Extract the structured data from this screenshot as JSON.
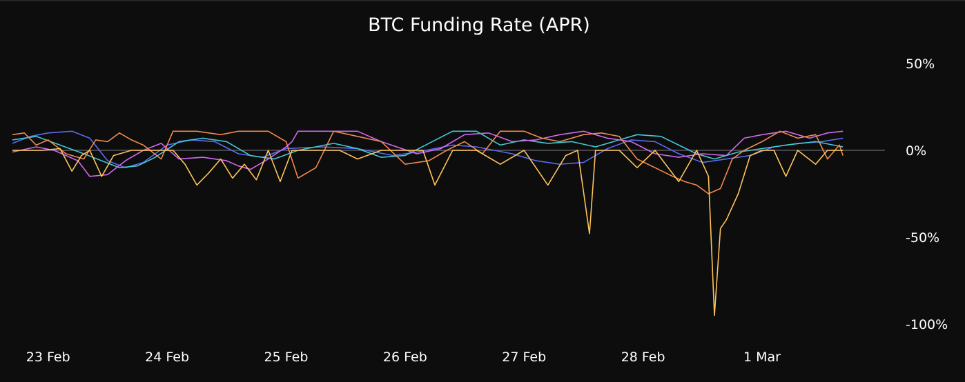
{
  "chart_data": {
    "type": "line",
    "title": "BTC Funding Rate (APR)",
    "xlabel": "",
    "ylabel": "",
    "ylim": [
      -100,
      50
    ],
    "yticks": [
      {
        "value": 50,
        "label": "50%"
      },
      {
        "value": 0,
        "label": "0%"
      },
      {
        "value": -50,
        "label": "-50%"
      },
      {
        "value": -100,
        "label": "-100%"
      }
    ],
    "xlim": [
      -0.3,
      7.05
    ],
    "xticks": [
      {
        "value": 0,
        "label": "23 Feb"
      },
      {
        "value": 1,
        "label": "24 Feb"
      },
      {
        "value": 2,
        "label": "25 Feb"
      },
      {
        "value": 3,
        "label": "26 Feb"
      },
      {
        "value": 4,
        "label": "27 Feb"
      },
      {
        "value": 5,
        "label": "28 Feb"
      },
      {
        "value": 6,
        "label": "1 Mar"
      }
    ],
    "grid": false,
    "legend": "none",
    "y_axis_position": "right",
    "series": [
      {
        "color": "#5b6cf2",
        "points": [
          [
            -0.3,
            4
          ],
          [
            -0.15,
            8
          ],
          [
            0,
            10
          ],
          [
            0.2,
            11
          ],
          [
            0.35,
            7
          ],
          [
            0.5,
            -6
          ],
          [
            0.65,
            -10
          ],
          [
            0.8,
            -7
          ],
          [
            1,
            3
          ],
          [
            1.2,
            6
          ],
          [
            1.4,
            5
          ],
          [
            1.6,
            -2
          ],
          [
            1.8,
            -4
          ],
          [
            2,
            1
          ],
          [
            2.3,
            2
          ],
          [
            2.6,
            1
          ],
          [
            2.9,
            -3
          ],
          [
            3.1,
            -1
          ],
          [
            3.4,
            3
          ],
          [
            3.6,
            2
          ],
          [
            3.9,
            -2
          ],
          [
            4.1,
            -6
          ],
          [
            4.3,
            -8
          ],
          [
            4.5,
            -7
          ],
          [
            4.7,
            1
          ],
          [
            4.9,
            6
          ],
          [
            5.1,
            5
          ],
          [
            5.3,
            -2
          ],
          [
            5.5,
            -7
          ],
          [
            5.7,
            -5
          ],
          [
            5.9,
            -3
          ],
          [
            6.1,
            2
          ],
          [
            6.3,
            4
          ],
          [
            6.5,
            5
          ],
          [
            6.68,
            7
          ]
        ]
      },
      {
        "color": "#45c9d0",
        "points": [
          [
            -0.3,
            6
          ],
          [
            -0.1,
            8
          ],
          [
            0.1,
            3
          ],
          [
            0.3,
            -2
          ],
          [
            0.45,
            -6
          ],
          [
            0.6,
            -10
          ],
          [
            0.75,
            -9
          ],
          [
            0.9,
            -4
          ],
          [
            1.1,
            5
          ],
          [
            1.3,
            7
          ],
          [
            1.5,
            5
          ],
          [
            1.7,
            -3
          ],
          [
            1.9,
            -5
          ],
          [
            2.1,
            0
          ],
          [
            2.4,
            4
          ],
          [
            2.6,
            1
          ],
          [
            2.8,
            -4
          ],
          [
            3,
            -3
          ],
          [
            3.2,
            4
          ],
          [
            3.4,
            11
          ],
          [
            3.6,
            11
          ],
          [
            3.8,
            3
          ],
          [
            4,
            6
          ],
          [
            4.2,
            4
          ],
          [
            4.4,
            5
          ],
          [
            4.6,
            2
          ],
          [
            4.8,
            6
          ],
          [
            4.95,
            9
          ],
          [
            5.15,
            8
          ],
          [
            5.3,
            3
          ],
          [
            5.45,
            -2
          ],
          [
            5.6,
            -5
          ],
          [
            5.8,
            -1
          ],
          [
            6,
            1
          ],
          [
            6.2,
            3
          ],
          [
            6.45,
            5
          ],
          [
            6.68,
            2
          ]
        ]
      },
      {
        "color": "#d169f0",
        "points": [
          [
            -0.3,
            -1
          ],
          [
            -0.1,
            2
          ],
          [
            0.05,
            0
          ],
          [
            0.25,
            -6
          ],
          [
            0.35,
            -15
          ],
          [
            0.5,
            -14
          ],
          [
            0.65,
            -6
          ],
          [
            0.8,
            0
          ],
          [
            0.95,
            4
          ],
          [
            1.1,
            -5
          ],
          [
            1.3,
            -4
          ],
          [
            1.5,
            -6
          ],
          [
            1.6,
            -9
          ],
          [
            1.7,
            -11
          ],
          [
            1.85,
            -5
          ],
          [
            2.0,
            2
          ],
          [
            2.05,
            5
          ],
          [
            2.1,
            11
          ],
          [
            2.3,
            11
          ],
          [
            2.6,
            11
          ],
          [
            2.8,
            5
          ],
          [
            3.1,
            -2
          ],
          [
            3.3,
            1
          ],
          [
            3.5,
            9
          ],
          [
            3.7,
            10
          ],
          [
            3.9,
            5
          ],
          [
            4.1,
            6
          ],
          [
            4.3,
            9
          ],
          [
            4.5,
            11
          ],
          [
            4.7,
            7
          ],
          [
            4.9,
            5
          ],
          [
            5.1,
            -2
          ],
          [
            5.3,
            -4
          ],
          [
            5.5,
            -2
          ],
          [
            5.7,
            -3
          ],
          [
            5.85,
            7
          ],
          [
            6.0,
            9
          ],
          [
            6.2,
            11
          ],
          [
            6.4,
            7
          ],
          [
            6.55,
            10
          ],
          [
            6.68,
            11
          ]
        ]
      },
      {
        "color": "#f28a4e",
        "points": [
          [
            -0.3,
            9
          ],
          [
            -0.2,
            10
          ],
          [
            -0.1,
            3
          ],
          [
            0,
            6
          ],
          [
            0.15,
            -2
          ],
          [
            0.3,
            -5
          ],
          [
            0.4,
            6
          ],
          [
            0.5,
            5
          ],
          [
            0.6,
            10
          ],
          [
            0.7,
            6
          ],
          [
            0.8,
            3
          ],
          [
            0.95,
            -5
          ],
          [
            1.05,
            11
          ],
          [
            1.25,
            11
          ],
          [
            1.45,
            9
          ],
          [
            1.6,
            11
          ],
          [
            1.85,
            11
          ],
          [
            2.0,
            5
          ],
          [
            2.1,
            -16
          ],
          [
            2.25,
            -10
          ],
          [
            2.4,
            11
          ],
          [
            2.6,
            8
          ],
          [
            2.8,
            5
          ],
          [
            3.0,
            -8
          ],
          [
            3.2,
            -6
          ],
          [
            3.35,
            0
          ],
          [
            3.5,
            5
          ],
          [
            3.65,
            -2
          ],
          [
            3.8,
            11
          ],
          [
            4.0,
            11
          ],
          [
            4.15,
            7
          ],
          [
            4.3,
            5
          ],
          [
            4.5,
            9
          ],
          [
            4.65,
            10
          ],
          [
            4.8,
            8
          ],
          [
            4.95,
            -5
          ],
          [
            5.1,
            -10
          ],
          [
            5.25,
            -15
          ],
          [
            5.35,
            -18
          ],
          [
            5.45,
            -20
          ],
          [
            5.55,
            -25
          ],
          [
            5.65,
            -22
          ],
          [
            5.75,
            -5
          ],
          [
            5.85,
            0
          ],
          [
            6.0,
            5
          ],
          [
            6.15,
            11
          ],
          [
            6.3,
            7
          ],
          [
            6.45,
            9
          ],
          [
            6.55,
            -5
          ],
          [
            6.65,
            3
          ],
          [
            6.68,
            -3
          ]
        ]
      },
      {
        "color": "#ffc45a",
        "points": [
          [
            -0.3,
            0
          ],
          [
            -0.05,
            0
          ],
          [
            0.1,
            1
          ],
          [
            0.2,
            -12
          ],
          [
            0.28,
            -3
          ],
          [
            0.35,
            0
          ],
          [
            0.45,
            -15
          ],
          [
            0.55,
            -3
          ],
          [
            0.7,
            0
          ],
          [
            0.9,
            0
          ],
          [
            1.05,
            0
          ],
          [
            1.15,
            -8
          ],
          [
            1.25,
            -20
          ],
          [
            1.35,
            -13
          ],
          [
            1.45,
            -5
          ],
          [
            1.55,
            -16
          ],
          [
            1.65,
            -8
          ],
          [
            1.75,
            -17
          ],
          [
            1.85,
            0
          ],
          [
            1.95,
            -18
          ],
          [
            2.05,
            0
          ],
          [
            2.25,
            0
          ],
          [
            2.45,
            0
          ],
          [
            2.6,
            -5
          ],
          [
            2.8,
            0
          ],
          [
            3.0,
            0
          ],
          [
            3.15,
            0
          ],
          [
            3.25,
            -20
          ],
          [
            3.4,
            0
          ],
          [
            3.6,
            0
          ],
          [
            3.8,
            -8
          ],
          [
            4.0,
            0
          ],
          [
            4.2,
            -20
          ],
          [
            4.35,
            -3
          ],
          [
            4.45,
            0
          ],
          [
            4.55,
            -48
          ],
          [
            4.6,
            0
          ],
          [
            4.8,
            0
          ],
          [
            4.95,
            -10
          ],
          [
            5.1,
            0
          ],
          [
            5.3,
            -18
          ],
          [
            5.45,
            0
          ],
          [
            5.55,
            -15
          ],
          [
            5.6,
            -95
          ],
          [
            5.65,
            -45
          ],
          [
            5.7,
            -40
          ],
          [
            5.8,
            -25
          ],
          [
            5.9,
            -3
          ],
          [
            6.0,
            0
          ],
          [
            6.1,
            0
          ],
          [
            6.2,
            -15
          ],
          [
            6.3,
            0
          ],
          [
            6.45,
            -8
          ],
          [
            6.55,
            0
          ],
          [
            6.68,
            0
          ]
        ]
      }
    ]
  }
}
